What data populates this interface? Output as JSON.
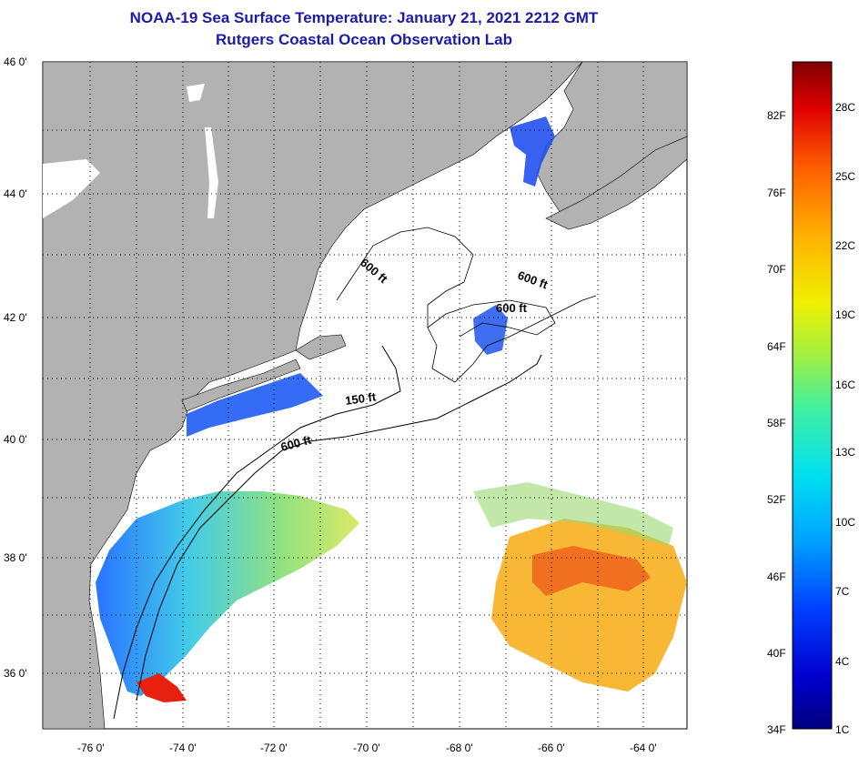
{
  "header": {
    "title": "NOAA-19 Sea Surface Temperature:  January 21, 2021 2212 GMT",
    "subtitle": "Rutgers Coastal Ocean Observation Lab"
  },
  "map": {
    "lat_ticks": [
      "46 0'",
      "44 0'",
      "42 0'",
      "40 0'",
      "38 0'",
      "36 0'"
    ],
    "lon_ticks": [
      "-76 0'",
      "-74 0'",
      "-72 0'",
      "-70 0'",
      "-68 0'",
      "-66 0'",
      "-64 0'"
    ],
    "lat_range": [
      35,
      46
    ],
    "lon_range": [
      -77,
      -62.5
    ],
    "land_color": "#b2b2b2",
    "ocean_cloud_color": "#ffffff",
    "contour_labels": [
      "600 ft",
      "600 ft",
      "600 ft",
      "150 ft",
      "600 ft"
    ]
  },
  "colorbar": {
    "fahrenheit_labels": [
      "82F",
      "76F",
      "70F",
      "64F",
      "58F",
      "52F",
      "46F",
      "40F",
      "34F"
    ],
    "celsius_labels": [
      "28C",
      "25C",
      "22C",
      "19C",
      "16C",
      "13C",
      "10C",
      "7C",
      "4C",
      "1C"
    ],
    "colors": [
      "#000080",
      "#0000d0",
      "#0040ff",
      "#00a0ff",
      "#00e0f0",
      "#40f0a0",
      "#a0f040",
      "#f0f000",
      "#ffb000",
      "#ff6000",
      "#e00000",
      "#800000"
    ]
  }
}
